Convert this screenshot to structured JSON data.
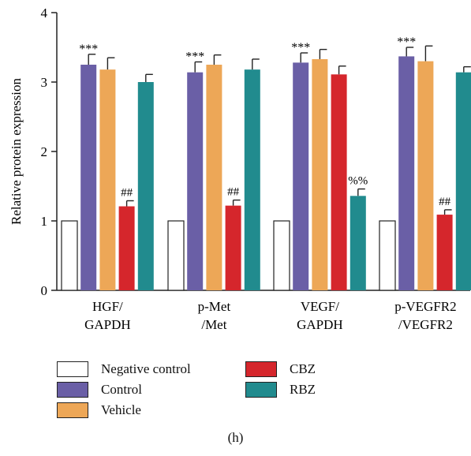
{
  "chart_data": {
    "type": "bar",
    "title": "",
    "xlabel": "",
    "ylabel": "Relative protein expression",
    "ylim": [
      0,
      4
    ],
    "yticks": [
      "0",
      "1",
      "2",
      "3",
      "4"
    ],
    "categories": [
      [
        "HGF/",
        "GAPDH"
      ],
      [
        "p-Met",
        "/Met"
      ],
      [
        "VEGF/",
        "GAPDH"
      ],
      [
        "p-VEGFR2",
        "/VEGFR2"
      ]
    ],
    "series": [
      {
        "name": "Negative control",
        "color": "#ffffff",
        "values": [
          1.0,
          1.0,
          1.0,
          1.0
        ],
        "errors": [
          0,
          0,
          0,
          0
        ],
        "annotations": [
          "",
          "",
          "",
          ""
        ]
      },
      {
        "name": "Control",
        "color": "#6a5fa6",
        "values": [
          3.25,
          3.14,
          3.28,
          3.37
        ],
        "errors": [
          0.15,
          0.15,
          0.14,
          0.13
        ],
        "annotations": [
          "***",
          "***",
          "***",
          "***"
        ]
      },
      {
        "name": "Vehicle",
        "color": "#eda757",
        "values": [
          3.18,
          3.25,
          3.33,
          3.3
        ],
        "errors": [
          0.17,
          0.14,
          0.14,
          0.22
        ],
        "annotations": [
          "",
          "",
          "",
          ""
        ]
      },
      {
        "name": "CBZ",
        "color": "#d5262c",
        "values": [
          1.21,
          1.22,
          3.11,
          1.09
        ],
        "errors": [
          0.08,
          0.08,
          0.12,
          0.07
        ],
        "annotations": [
          "##",
          "##",
          "",
          "##"
        ]
      },
      {
        "name": "RBZ",
        "color": "#218b8e",
        "values": [
          3.0,
          3.18,
          1.36,
          3.14
        ],
        "errors": [
          0.11,
          0.15,
          0.1,
          0.08
        ],
        "annotations": [
          "",
          "",
          "%%",
          ""
        ]
      }
    ],
    "legend_position": "bottom",
    "grid": false
  },
  "panel_label": "(h)"
}
